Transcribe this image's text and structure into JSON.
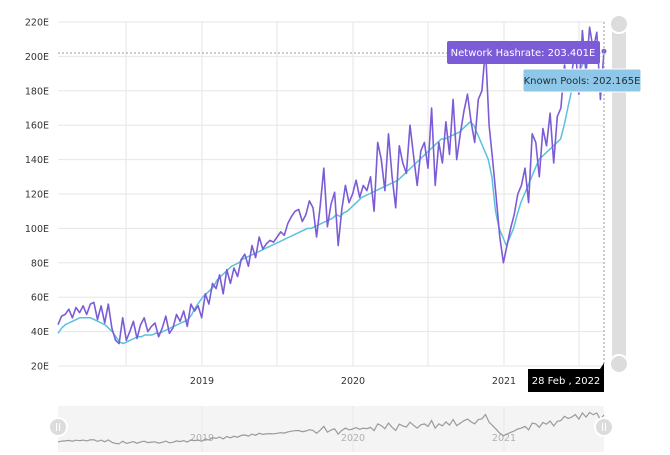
{
  "chart_data": {
    "type": "line",
    "x_start": "2018-02",
    "x_end": "2022-02-28",
    "x_ticks": [
      "2019",
      "2020",
      "2021"
    ],
    "y_ticks": [
      "20E",
      "40E",
      "60E",
      "80E",
      "100E",
      "120E",
      "140E",
      "160E",
      "180E",
      "200E",
      "220E"
    ],
    "ylim": [
      20,
      220
    ],
    "grid": true,
    "series": [
      {
        "name": "Network Hashrate",
        "color": "#7b5cd6",
        "values": [
          44,
          49,
          50,
          53,
          48,
          54,
          51,
          55,
          50,
          56,
          57,
          47,
          55,
          45,
          56,
          42,
          35,
          33,
          48,
          35,
          40,
          46,
          36,
          44,
          48,
          40,
          43,
          45,
          37,
          42,
          49,
          39,
          42,
          50,
          46,
          52,
          43,
          56,
          52,
          55,
          48,
          62,
          56,
          68,
          65,
          73,
          62,
          76,
          68,
          77,
          72,
          82,
          85,
          78,
          90,
          83,
          95,
          88,
          91,
          93,
          92,
          95,
          98,
          96,
          103,
          107,
          110,
          111,
          104,
          108,
          116,
          112,
          95,
          113,
          135,
          101,
          114,
          121,
          90,
          111,
          125,
          115,
          120,
          128,
          118,
          125,
          122,
          130,
          110,
          150,
          140,
          122,
          155,
          130,
          112,
          148,
          138,
          132,
          160,
          142,
          125,
          145,
          150,
          135,
          170,
          125,
          150,
          138,
          162,
          143,
          175,
          140,
          155,
          168,
          178,
          162,
          150,
          175,
          180,
          205,
          160,
          140,
          118,
          95,
          80,
          90,
          100,
          108,
          120,
          125,
          135,
          115,
          155,
          150,
          130,
          158,
          148,
          167,
          138,
          165,
          170,
          195,
          182,
          190,
          205,
          178,
          215,
          190,
          217,
          204,
          214,
          175,
          203
        ]
      },
      {
        "name": "Known Pools",
        "color": "#5bc0de",
        "values": [
          39,
          42,
          44,
          45,
          46,
          47,
          48,
          48,
          48,
          48,
          47,
          46,
          45,
          44,
          42,
          40,
          37,
          34,
          33,
          34,
          35,
          36,
          37,
          37,
          38,
          38,
          38,
          39,
          39,
          40,
          41,
          42,
          43,
          44,
          45,
          46,
          47,
          50,
          54,
          57,
          60,
          62,
          64,
          66,
          70,
          72,
          74,
          76,
          78,
          79,
          80,
          82,
          83,
          84,
          85,
          86,
          87,
          88,
          89,
          90,
          91,
          92,
          93,
          94,
          95,
          96,
          97,
          98,
          99,
          100,
          100,
          101,
          102,
          103,
          104,
          105,
          106,
          108,
          107,
          109,
          110,
          112,
          114,
          116,
          118,
          119,
          120,
          121,
          122,
          123,
          124,
          125,
          126,
          127,
          128,
          130,
          132,
          134,
          136,
          138,
          140,
          142,
          144,
          146,
          148,
          150,
          152,
          152,
          153,
          154,
          155,
          156,
          158,
          160,
          162,
          160,
          155,
          150,
          145,
          140,
          130,
          110,
          100,
          95,
          90,
          95,
          100,
          108,
          115,
          120,
          125,
          130,
          135,
          140,
          142,
          144,
          146,
          148,
          150,
          152,
          160,
          170,
          180,
          185,
          190,
          195,
          198,
          200,
          201,
          202,
          202,
          202.165
        ]
      }
    ],
    "navigator": {
      "x_ticks": [
        "2019",
        "2020",
        "2021"
      ]
    }
  },
  "tooltips": {
    "hashrate": "Network Hashrate: 203.401E",
    "pools": "Known Pools: 202.165E",
    "date": "28 Feb , 2022"
  }
}
